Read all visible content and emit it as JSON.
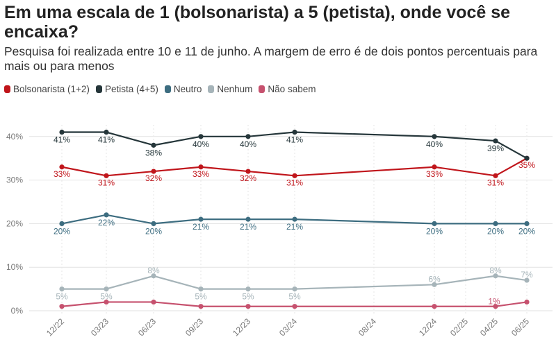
{
  "header": {
    "title": "Em uma escala de 1 (bolsonarista) a 5 (petista), onde você se encaixa?",
    "subtitle": "Pesquisa foi realizada entre 10 e 11 de junho. A margem de erro é de dois pontos percentuais para mais ou para menos"
  },
  "chart_data": {
    "type": "line",
    "title": "Em uma escala de 1 (bolsonarista) a 5 (petista), onde você se encaixa?",
    "subtitle": "Pesquisa foi realizada entre 10 e 11 de junho. A margem de erro é de dois pontos percentuais para mais ou para menos",
    "legend_position": "top-left",
    "grid": true,
    "ylim": [
      0,
      45
    ],
    "y_ticks": [
      "0%",
      "10%",
      "20%",
      "30%",
      "40%"
    ],
    "x_ticks": [
      "12/22",
      "03/23",
      "06/23",
      "09/23",
      "12/23",
      "03/24",
      "08/24",
      "12/24",
      "02/25",
      "04/25",
      "06/25"
    ],
    "x": [
      "12/22",
      "03/23",
      "06/23",
      "09/23",
      "12/23",
      "03/24",
      "12/24",
      "04/25",
      "06/25"
    ],
    "series": [
      {
        "name": "Bolsonarista (1+2)",
        "color": "#c0151b",
        "values": [
          33,
          31,
          32,
          33,
          32,
          31,
          33,
          31,
          35
        ],
        "labels": [
          "33%",
          "31%",
          "32%",
          "33%",
          "32%",
          "31%",
          "33%",
          "31%",
          "35%"
        ]
      },
      {
        "name": "Petista (4+5)",
        "color": "#25363a",
        "values": [
          41,
          41,
          38,
          40,
          40,
          41,
          40,
          39,
          35
        ],
        "labels": [
          "41%",
          "41%",
          "38%",
          "40%",
          "40%",
          "41%",
          "40%",
          "39%",
          ""
        ]
      },
      {
        "name": "Neutro",
        "color": "#3d6d80",
        "values": [
          20,
          22,
          20,
          21,
          21,
          21,
          20,
          20,
          20
        ],
        "labels": [
          "20%",
          "22%",
          "20%",
          "21%",
          "21%",
          "21%",
          "20%",
          "20%",
          "20%"
        ]
      },
      {
        "name": "Nenhum",
        "color": "#a6b4b9",
        "values": [
          5,
          5,
          8,
          5,
          5,
          5,
          6,
          8,
          7
        ],
        "labels": [
          "5%",
          "5%",
          "8%",
          "5%",
          "5%",
          "5%",
          "6%",
          "8%",
          "7%"
        ]
      },
      {
        "name": "Não sabem",
        "color": "#c6516e",
        "values": [
          1,
          2,
          2,
          1,
          1,
          1,
          1,
          1,
          2
        ],
        "labels": [
          "",
          "",
          "",
          "",
          "",
          "",
          "",
          "1%",
          ""
        ]
      }
    ]
  }
}
